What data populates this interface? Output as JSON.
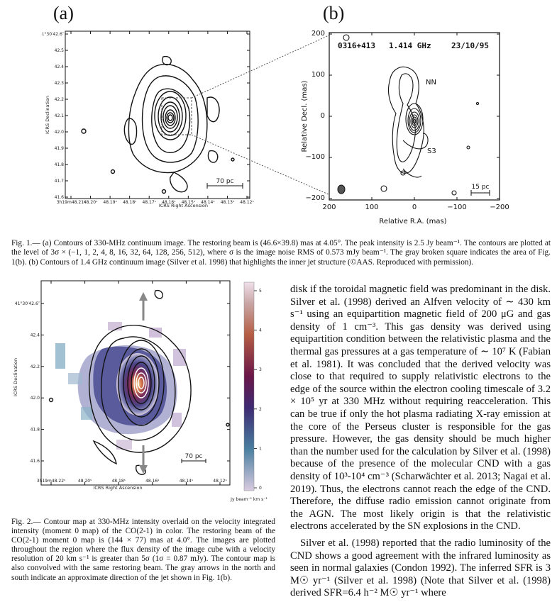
{
  "figure1": {
    "panel_a_letter": "(a)",
    "panel_b_letter": "(b)",
    "panel_a": {
      "y_ticks": [
        "41°30′42.6″",
        "42.5",
        "42.4",
        "42.3",
        "42.2",
        "42.1",
        "42.0",
        "41.9",
        "41.8",
        "41.7",
        "41.6"
      ],
      "x_ticks": [
        "3h19m48.21ˢ",
        "48.20ˢ",
        "48.19ˢ",
        "48.18ˢ",
        "48.17ˢ",
        "48.16ˢ",
        "48.15ˢ",
        "48.14ˢ",
        "48.13ˢ",
        "48.12ˢ"
      ],
      "x_label": "ICRS Right Ascension",
      "y_label": "ICRS Declination",
      "scale_bar": "70 pc"
    },
    "panel_b": {
      "source": "0316+413",
      "frequency": "1.414 GHz",
      "date": "23/10/95",
      "label_nn": "NN",
      "label_s3": "S3",
      "scale_bar": "15 pc",
      "y_ticks": [
        "200",
        "100",
        "0",
        "−100",
        "−200"
      ],
      "x_ticks": [
        "200",
        "100",
        "0",
        "−100",
        "−200"
      ],
      "x_label": "Relative R.A. (mas)",
      "y_label": "Relative Decl. (mas)"
    },
    "caption": "Fig. 1.— (a) Contours of 330-MHz continuum image. The restoring beam is (46.6×39.8) mas at 4.05°. The peak intensity is 2.5 Jy beam⁻¹. The contours are plotted at the level of 3σ × (−1, 1, 2, 4, 8, 16, 32, 64, 128, 256, 512), where σ is the image noise RMS of 0.573 mJy beam⁻¹. The gray broken square indicates the area of Fig. 1(b). (b) Contours of 1.4 GHz continuum image (Silver et al. 1998) that highlights the inner jet structure (©AAS. Reproduced with permission)."
  },
  "figure2": {
    "y_ticks": [
      "41°30′42.6″",
      "42.4",
      "42.2",
      "42.0",
      "41.8",
      "41.6"
    ],
    "x_ticks": [
      "3h19m48.22ˢ",
      "48.20ˢ",
      "48.18ˢ",
      "48.16ˢ",
      "48.14ˢ",
      "48.12ˢ"
    ],
    "x_label": "ICRS Right Ascension",
    "y_label": "ICRS Declination",
    "scale_bar": "70 pc",
    "colorbar_ticks": [
      "5",
      "4",
      "3",
      "2",
      "1",
      "0"
    ],
    "colorbar_label": "Jy beam⁻¹ km s⁻¹",
    "caption": "Fig. 2.— Contour map at 330-MHz intensity overlaid on the velocity integrated intensity (moment 0 map) of the CO(2-1) in color. The restoring beam of the CO(2-1) moment 0 map is (144 × 77) mas at 4.0°. The images are plotted throughout the region where the flux density of the image cube with a velocity resolution of 20 km s⁻¹ is greater than 5σ (1σ = 0.87 mJy). The contour map is also convolved with the same restoring beam. The gray arrows in the north and south indicate an approximate direction of the jet shown in Fig. 1(b)."
  },
  "body": {
    "para1": "disk if the toroidal magnetic field was predominant in the disk. Silver et al. (1998) derived an Alfven velocity of ∼ 430 km s⁻¹ using an equipartition magnetic field of 200 μG and gas density of 1 cm⁻³. This gas density was derived using equipartition condition between the relativistic plasma and the thermal gas pressures at a gas temperature of ∼ 10⁷ K (Fabian et al. 1981). It was concluded that the derived velocity was close to that required to supply relativistic electrons to the edge of the source within the electron cooling timescale of 3.2 × 10⁵ yr at 330 MHz without requiring reacceleration. This can be true if only the hot plasma radiating X-ray emission at the core of the Perseus cluster is responsible for the gas pressure. However, the gas density should be much higher than the number used for the calculation by Silver et al. (1998) because of the presence of the molecular CND with a gas density of 10³-10⁴ cm⁻³ (Scharwächter et al. 2013; Nagai et al. 2019). Thus, the electrons cannot reach the edge of the CND. Therefore, the diffuse radio emission cannot originate from the AGN. The most likely origin is that the relativistic electrons accelerated by the SN explosions in the CND.",
    "para2": "Silver et al. (1998) reported that the radio luminosity of the CND shows a good agreement with the infrared luminosity as seen in normal galaxies (Condon 1992). The inferred SFR is 3 M☉ yr⁻¹ (Silver et al. 1998) (Note that Silver et al. (1998) derived SFR=6.4 h⁻² M☉ yr⁻¹ where"
  }
}
